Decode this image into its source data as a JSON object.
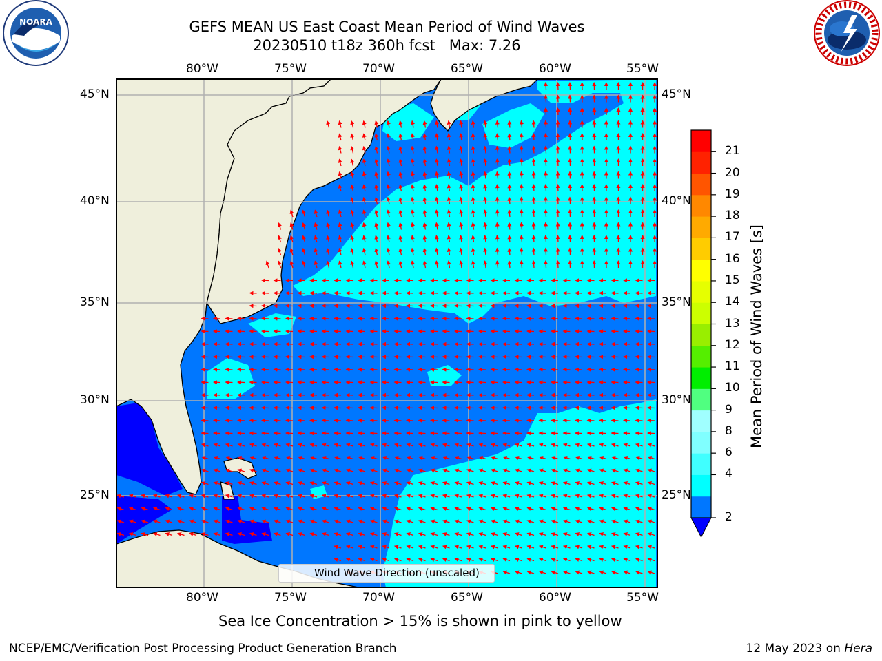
{
  "header": {
    "title_line1": "GEFS MEAN US East Coast Mean Period of Wind Waves",
    "title_line2": "20230510 t18z 360h fcst   Max: 7.26"
  },
  "logos": {
    "left": {
      "name": "NOARA",
      "ring": "NATIONAL OCEANIC AND ATMOSPHERIC ADMINISTRATION · U.S. DEPARTMENT OF COMMERCE"
    },
    "right": {
      "ring": "NATIONAL WEATHER SERVICE"
    }
  },
  "map": {
    "lon_range": [
      -85,
      -54.2
    ],
    "lat_range": [
      20.5,
      45.9
    ],
    "longitude_ticks": [
      "80°W",
      "75°W",
      "70°W",
      "65°W",
      "60°W",
      "55°W"
    ],
    "latitude_ticks": [
      "45°N",
      "40°N",
      "35°N",
      "30°N",
      "25°N"
    ],
    "land_color": "#efefdc",
    "grid_color": "#b0b0b0",
    "vector_color": "#ff0000",
    "legend_label": "Wind Wave Direction (unscaled)"
  },
  "colorbar": {
    "label": "Mean Period of Wind Waves [s]",
    "ticks": [
      "2",
      "4",
      "6",
      "8",
      "9",
      "10",
      "11",
      "12",
      "13",
      "14",
      "15",
      "16",
      "17",
      "18",
      "19",
      "20",
      "21"
    ],
    "colors": [
      "#0077ff",
      "#00ffff",
      "#40ffff",
      "#80ffff",
      "#a0ffff",
      "#50ff80",
      "#00ee00",
      "#55ee00",
      "#99ee00",
      "#ccff00",
      "#e6ff00",
      "#ffff00",
      "#ffcc00",
      "#ffaa00",
      "#ff8800",
      "#ff5500",
      "#ff2200",
      "#ff0000"
    ],
    "under_color": "#0000ff"
  },
  "notes": {
    "sea_ice": "Sea Ice Concentration > 15% is shown in pink to yellow"
  },
  "footer": {
    "left": "NCEP/EMC/Verification Post Processing Product Generation Branch",
    "right_date": "12 May 2023 on",
    "right_host": "Hera"
  }
}
